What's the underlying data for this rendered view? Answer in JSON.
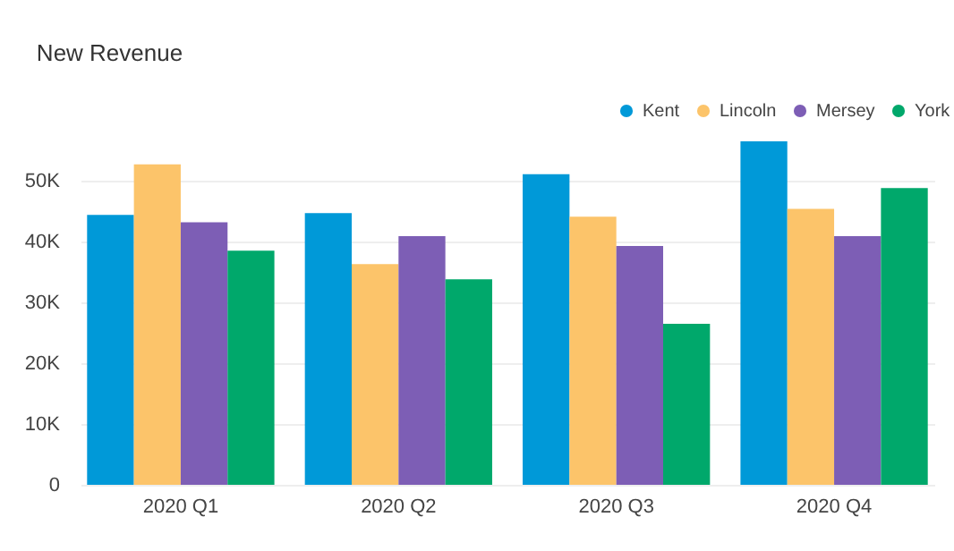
{
  "chart_data": {
    "type": "bar",
    "title": "New Revenue",
    "categories": [
      "2020 Q1",
      "2020 Q2",
      "2020 Q3",
      "2020 Q4"
    ],
    "series": [
      {
        "name": "Kent",
        "color": "#0099d8",
        "values": [
          44400,
          44700,
          51100,
          56500
        ]
      },
      {
        "name": "Lincoln",
        "color": "#fcc46a",
        "values": [
          52700,
          36300,
          44100,
          45400
        ]
      },
      {
        "name": "Mersey",
        "color": "#7d5eb5",
        "values": [
          43200,
          40900,
          39300,
          40900
        ]
      },
      {
        "name": "York",
        "color": "#00a86b",
        "values": [
          38500,
          33800,
          26500,
          48800
        ]
      }
    ],
    "ylim": [
      0,
      56500
    ],
    "yticks": [
      {
        "value": 0,
        "label": "0"
      },
      {
        "value": 10000,
        "label": "10K"
      },
      {
        "value": 20000,
        "label": "20K"
      },
      {
        "value": 30000,
        "label": "30K"
      },
      {
        "value": 40000,
        "label": "40K"
      },
      {
        "value": 50000,
        "label": "50K"
      }
    ],
    "grid": "y",
    "legend": "top right"
  }
}
